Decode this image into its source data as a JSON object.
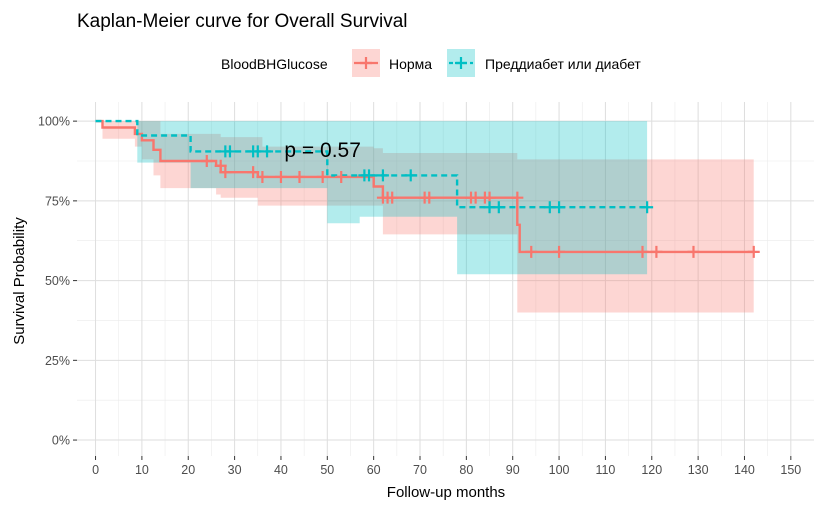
{
  "chart_data": {
    "type": "line",
    "subtype": "kaplan-meier",
    "title": "Kaplan-Meier curve for Overall Survival",
    "xlabel": "Follow-up months",
    "ylabel": "Survival Probability",
    "xlim": [
      -4,
      155
    ],
    "ylim": [
      -0.05,
      1.06
    ],
    "x_ticks": [
      0,
      10,
      20,
      30,
      40,
      50,
      60,
      70,
      80,
      90,
      100,
      110,
      120,
      130,
      140,
      150
    ],
    "x_tick_labels": [
      "0",
      "10",
      "20",
      "30",
      "40",
      "50",
      "60",
      "70",
      "80",
      "90",
      "100",
      "110",
      "120",
      "130",
      "140",
      "150"
    ],
    "y_ticks": [
      0,
      0.25,
      0.5,
      0.75,
      1.0
    ],
    "y_tick_labels": [
      "0%",
      "25%",
      "50%",
      "75%",
      "100%"
    ],
    "grid": true,
    "legend": {
      "title": "BloodBHGlucose",
      "position": "top"
    },
    "annotation": {
      "text": "p = 0.57",
      "x": 49,
      "y": 0.91
    },
    "series": [
      {
        "name": "Норма",
        "color": "#F8766D",
        "fill": "#F8766D",
        "linestyle": "solid",
        "steps": [
          [
            0,
            1.0
          ],
          [
            1.5,
            0.98
          ],
          [
            8.5,
            0.96
          ],
          [
            10,
            0.94
          ],
          [
            12.5,
            0.91
          ],
          [
            14,
            0.875
          ],
          [
            26,
            0.86
          ],
          [
            27,
            0.84
          ],
          [
            35,
            0.825
          ],
          [
            49,
            0.825
          ],
          [
            60,
            0.795
          ],
          [
            62,
            0.76
          ],
          [
            90,
            0.76
          ],
          [
            91,
            0.675
          ],
          [
            91.5,
            0.59
          ],
          [
            142,
            0.59
          ]
        ],
        "ci_lower": [
          [
            0,
            1.0
          ],
          [
            1.5,
            0.945
          ],
          [
            8.5,
            0.92
          ],
          [
            10,
            0.88
          ],
          [
            12.5,
            0.83
          ],
          [
            14,
            0.79
          ],
          [
            21,
            0.79
          ],
          [
            26,
            0.77
          ],
          [
            27,
            0.76
          ],
          [
            35,
            0.735
          ],
          [
            50,
            0.735
          ],
          [
            62,
            0.645
          ],
          [
            91,
            0.4
          ],
          [
            142,
            0.4
          ]
        ],
        "ci_upper": [
          [
            0,
            1.0
          ],
          [
            13,
            1.0
          ],
          [
            14,
            0.96
          ],
          [
            27,
            0.95
          ],
          [
            36,
            0.92
          ],
          [
            60,
            0.915
          ],
          [
            62,
            0.9
          ],
          [
            91,
            0.88
          ],
          [
            142,
            0.88
          ]
        ],
        "censor_x": [
          24,
          27,
          28,
          34,
          36,
          40,
          44,
          49,
          53,
          62,
          63,
          64,
          71,
          72,
          81,
          82,
          84,
          85,
          91,
          94,
          100,
          118,
          121,
          129,
          142
        ],
        "censor_y": [
          0.875,
          0.86,
          0.84,
          0.84,
          0.825,
          0.825,
          0.825,
          0.825,
          0.825,
          0.76,
          0.76,
          0.76,
          0.76,
          0.76,
          0.76,
          0.76,
          0.76,
          0.76,
          0.76,
          0.59,
          0.59,
          0.59,
          0.59,
          0.59,
          0.59
        ]
      },
      {
        "name": "Преддиабет или диабет",
        "color": "#00BFC4",
        "fill": "#00BFC4",
        "linestyle": "dashed",
        "steps": [
          [
            0,
            1.0
          ],
          [
            9,
            0.955
          ],
          [
            20.5,
            0.905
          ],
          [
            50,
            0.83
          ],
          [
            78,
            0.73
          ],
          [
            119,
            0.73
          ]
        ],
        "ci_lower": [
          [
            0,
            1.0
          ],
          [
            9,
            0.87
          ],
          [
            20.5,
            0.79
          ],
          [
            50,
            0.68
          ],
          [
            57,
            0.7
          ],
          [
            78,
            0.52
          ],
          [
            119,
            0.52
          ]
        ],
        "ci_upper": [
          [
            0,
            1.0
          ],
          [
            119,
            1.0
          ]
        ],
        "censor_x": [
          28,
          29,
          34,
          35,
          37,
          58,
          59,
          62,
          68,
          85,
          87,
          98,
          100,
          119
        ],
        "censor_y": [
          0.905,
          0.905,
          0.905,
          0.905,
          0.905,
          0.83,
          0.83,
          0.83,
          0.83,
          0.73,
          0.73,
          0.73,
          0.73,
          0.73
        ]
      }
    ]
  }
}
